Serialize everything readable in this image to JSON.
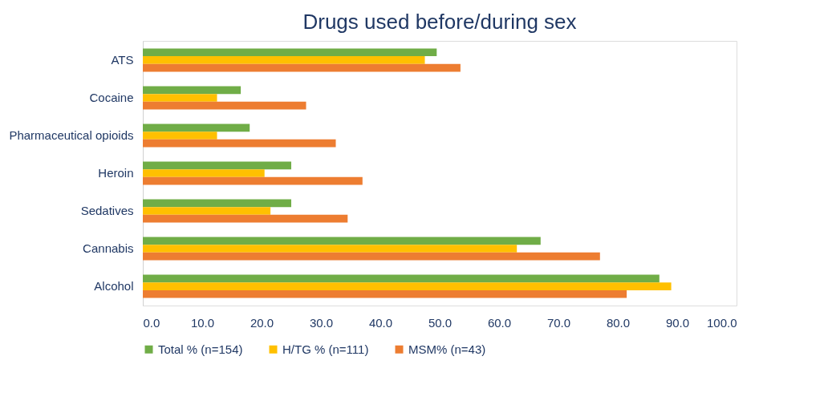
{
  "chart_data": {
    "type": "bar",
    "orientation": "horizontal",
    "title": "Drugs used before/during sex",
    "categories": [
      "ATS",
      "Cocaine",
      "Pharmaceutical opioids",
      "Heroin",
      "Sedatives",
      "Cannabis",
      "Alcohol"
    ],
    "series": [
      {
        "name": "Total % (n=154)",
        "color": "#70ad47",
        "values": [
          49.5,
          16.5,
          18,
          25,
          25,
          67,
          87
        ]
      },
      {
        "name": "H/TG % (n=111)",
        "color": "#ffc000",
        "values": [
          47.5,
          12.5,
          12.5,
          20.5,
          21.5,
          63,
          89
        ]
      },
      {
        "name": "MSM% (n=43)",
        "color": "#ed7d31",
        "values": [
          53.5,
          27.5,
          32.5,
          37,
          34.5,
          77,
          81.5
        ]
      }
    ],
    "xlim": [
      0,
      100
    ],
    "xticks": [
      {
        "value": 0,
        "label": "0.0"
      },
      {
        "value": 10,
        "label": "10.0"
      },
      {
        "value": 20,
        "label": "20.0"
      },
      {
        "value": 30,
        "label": "30.0"
      },
      {
        "value": 40,
        "label": "40.0"
      },
      {
        "value": 50,
        "label": "50.0"
      },
      {
        "value": 60,
        "label": "60.0"
      },
      {
        "value": 70,
        "label": "70.0"
      },
      {
        "value": 80,
        "label": "80.0"
      },
      {
        "value": 90,
        "label": "90.0"
      },
      {
        "value": 100,
        "label": "100.0"
      }
    ],
    "grid": false,
    "legend": "bottom"
  }
}
